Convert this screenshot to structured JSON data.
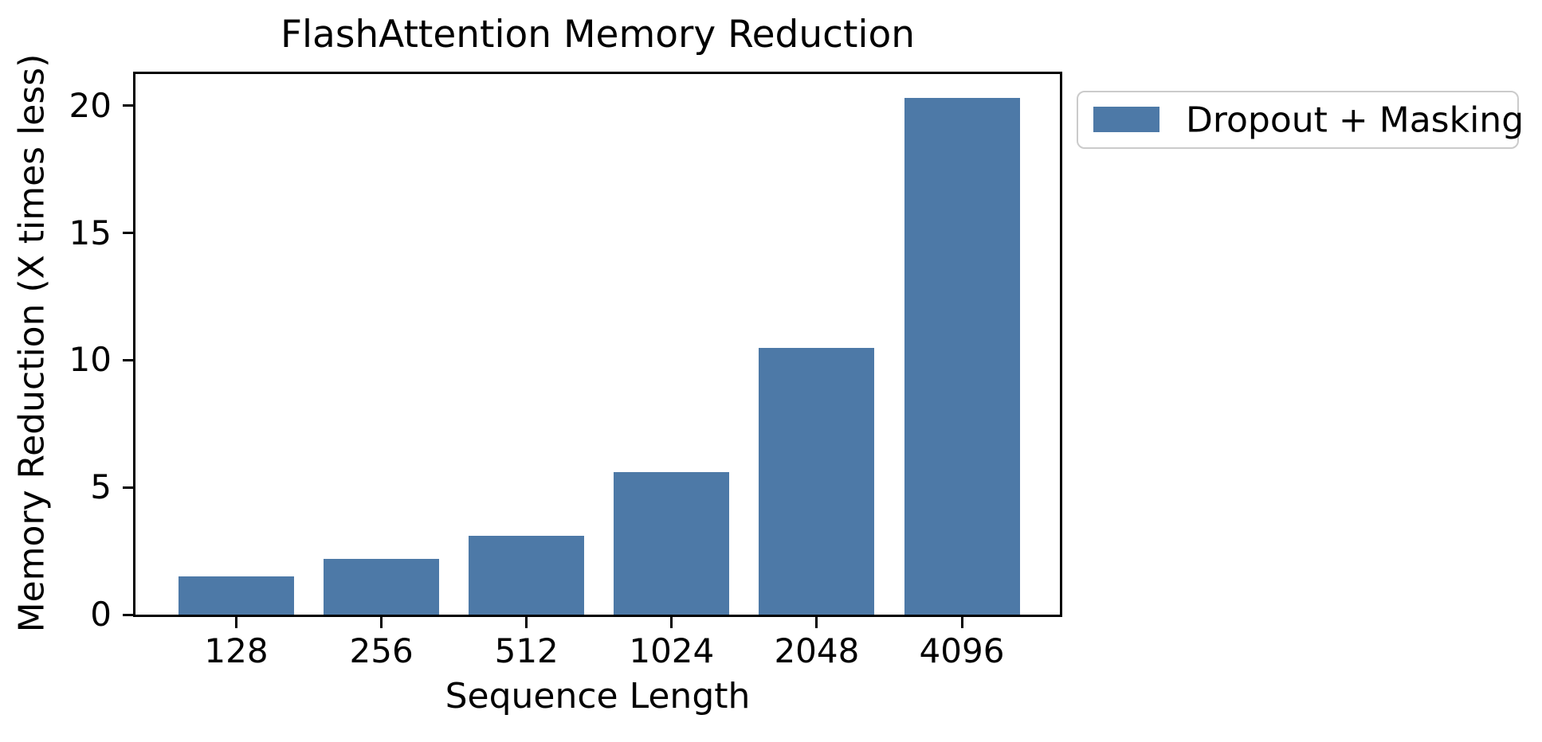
{
  "chart_data": {
    "type": "bar",
    "title": "FlashAttention Memory Reduction",
    "xlabel": "Sequence Length",
    "ylabel": "Memory Reduction (X times less)",
    "categories": [
      "128",
      "256",
      "512",
      "1024",
      "2048",
      "4096"
    ],
    "series": [
      {
        "name": "Dropout + Masking",
        "values": [
          1.5,
          2.2,
          3.1,
          5.6,
          10.5,
          20.3
        ]
      }
    ],
    "yticks": [
      0,
      5,
      10,
      15,
      20
    ],
    "ylim": [
      0,
      21.25
    ],
    "grid": false,
    "legend_position": "outside upper right",
    "bar_color": "#4d79a7",
    "spine_color": "#000000",
    "legend_border_color": "#cbcbcb",
    "background_color": "#ffffff"
  }
}
